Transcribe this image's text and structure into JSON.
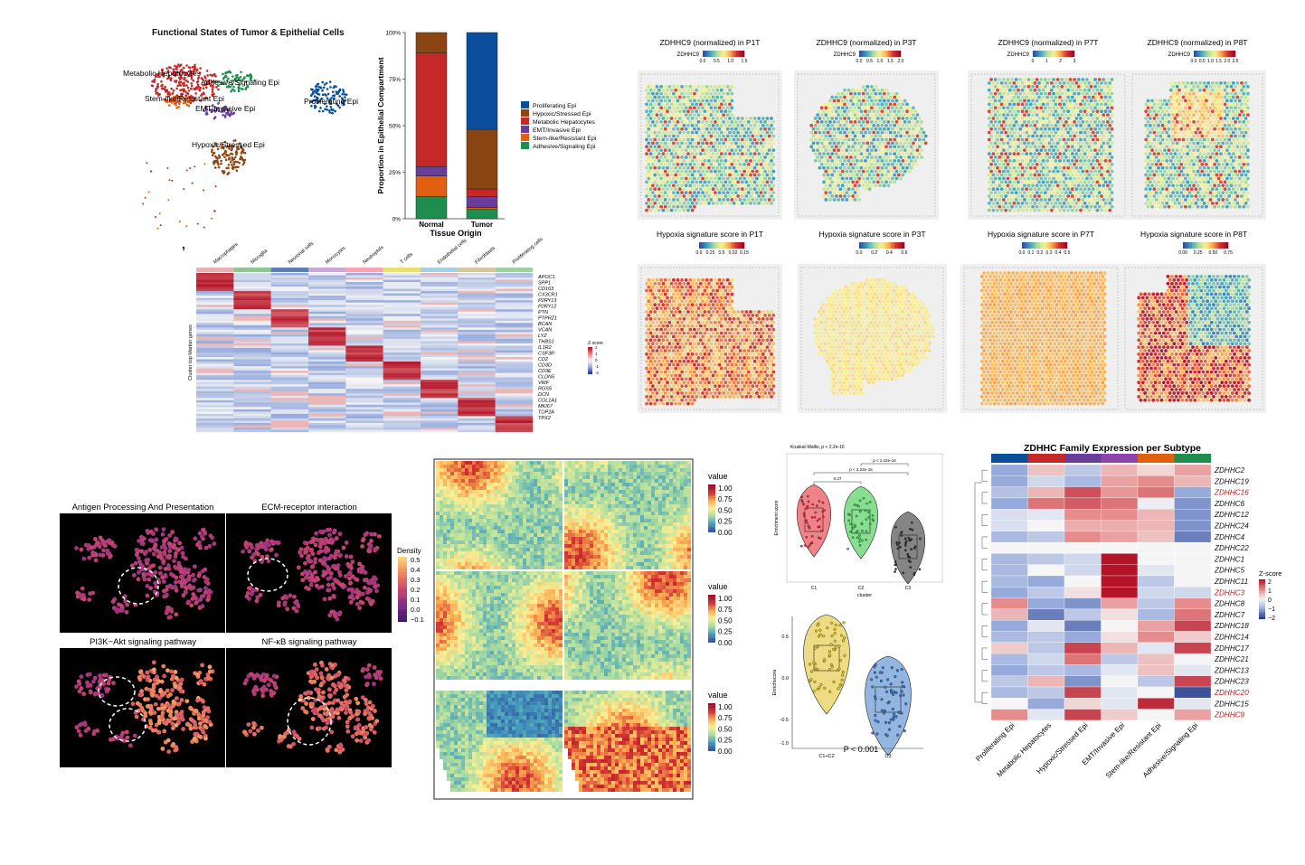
{
  "panel_comma": ",",
  "umap": {
    "title": "Functional States of Tumor & Epithelial Cells",
    "labels": [
      "Metabolic Hepatocytes",
      "Adhesive/Signaling Epi",
      "Stem-like/Resistant Epi",
      "EMT/Invasive Epi",
      "Proliferating Epi",
      "Hypoxic/Stressed Epi"
    ],
    "colors": {
      "metabolic": "#c62828",
      "adhesive": "#1e8e4e",
      "stem": "#e06010",
      "emt": "#6a3d9a",
      "prolif": "#0b4f9c",
      "hypoxic": "#8b4513"
    }
  },
  "chart_data": [
    {
      "type": "bar",
      "stacked": true,
      "categories": [
        "Normal",
        "Tumor"
      ],
      "xlabel": "Tissue Origin",
      "ylabel": "Proportion in Epithelial Compartment",
      "yticks": [
        "0%",
        "25%",
        "50%",
        "75%",
        "100%"
      ],
      "ylim": [
        0,
        1
      ],
      "legend_position": "right",
      "series": [
        {
          "name": "Adhesive/Signaling Epi",
          "color": "#1e8e4e",
          "values": [
            0.12,
            0.05
          ]
        },
        {
          "name": "Stem-like/Resistant Epi",
          "color": "#e06010",
          "values": [
            0.11,
            0.01
          ]
        },
        {
          "name": "EMT/Invasive Epi",
          "color": "#6a3d9a",
          "values": [
            0.05,
            0.06
          ]
        },
        {
          "name": "Metabolic Hepatocytes",
          "color": "#c62828",
          "values": [
            0.61,
            0.04
          ]
        },
        {
          "name": "Hypoxic/Stressed Epi",
          "color": "#8b4513",
          "values": [
            0.11,
            0.32
          ]
        },
        {
          "name": "Proliferating Epi",
          "color": "#0b4f9c",
          "values": [
            0.0,
            0.52
          ]
        }
      ],
      "legend_order": [
        "Proliferating Epi",
        "Hypoxic/Stressed Epi",
        "Metabolic Hepatocytes",
        "EMT/Invasive Epi",
        "Stem-like/Resistant Epi",
        "Adhesive/Signaling Epi"
      ]
    },
    {
      "type": "heatmap",
      "columns": [
        "Macrophages",
        "Microglia",
        "Neuronal cells",
        "Monocytes",
        "Neutrophils",
        "T cells",
        "Endothelial cells",
        "Fibroblasts",
        "Proliferating cells"
      ],
      "column_colors": [
        "#e8b0b0",
        "#90c490",
        "#5a7fb0",
        "#c9a8d8",
        "#f4a4b4",
        "#e8e070",
        "#a6cde0",
        "#d6c6a0",
        "#9fd09f"
      ],
      "ylabel": "Cluster top Marker genes",
      "genes": [
        "APOC1",
        "SPP1",
        "CD163",
        "CX3CR1",
        "P2RY13",
        "P2RY12",
        "PTN",
        "PTPRZ1",
        "BCAN",
        "VCAN",
        "LYZ",
        "THBS1",
        "IL1R2",
        "CSF3R",
        "CD2",
        "CD3D",
        "CD3E",
        "CLDN5",
        "VWF",
        "RGS5",
        "DCN",
        "COL1A1",
        "MKI67",
        "TOP2A",
        "TPX2"
      ],
      "legend_title": "Z-score",
      "legend_ticks": [
        "2",
        "1",
        "0",
        "-1",
        "-2"
      ]
    },
    {
      "type": "heatmap",
      "title": "ZDHHC Family Expression per Subtype",
      "columns": [
        "Proliferating Epi",
        "Metabolic Hepatocytes",
        "Hypoxic/Stressed Epi",
        "EMT/Invasive Epi",
        "Stem-like/Resistant Epi",
        "Adhesive/Signaling Epi"
      ],
      "column_colors": [
        "#0b4f9c",
        "#c62828",
        "#6a3d9a",
        "#8e44ad",
        "#e06010",
        "#1e8e4e"
      ],
      "rows": [
        "ZDHHC2",
        "ZDHHC19",
        "ZDHHC16",
        "ZDHHC6",
        "ZDHHC12",
        "ZDHHC24",
        "ZDHHC4",
        "ZDHHC22",
        "ZDHHC1",
        "ZDHHC5",
        "ZDHHC11",
        "ZDHHC3",
        "ZDHHC8",
        "ZDHHC7",
        "ZDHHC18",
        "ZDHHC14",
        "ZDHHC17",
        "ZDHHC21",
        "ZDHHC13",
        "ZDHHC23",
        "ZDHHC20",
        "ZDHHC15",
        "ZDHHC9"
      ],
      "highlighted_rows": [
        "ZDHHC16",
        "ZDHHC3",
        "ZDHHC20",
        "ZDHHC9"
      ],
      "values": [
        [
          -1.0,
          0.5,
          -0.6,
          0.6,
          0.3,
          0.8
        ],
        [
          -1.0,
          -0.4,
          -0.8,
          0.8,
          1.0,
          0.6
        ],
        [
          -0.7,
          0.6,
          1.5,
          0.9,
          1.2,
          -1.0
        ],
        [
          -1.0,
          1.2,
          1.4,
          1.2,
          -0.1,
          -1.2
        ],
        [
          -0.3,
          -0.2,
          1.0,
          1.0,
          0.6,
          -1.2
        ],
        [
          -0.3,
          0.0,
          0.7,
          0.7,
          0.6,
          -1.2
        ],
        [
          -0.8,
          -0.6,
          1.0,
          0.8,
          0.5,
          -1.4
        ],
        [
          0.0,
          0.0,
          0.0,
          0.0,
          0.0,
          0.0
        ],
        [
          -0.8,
          -0.6,
          -0.4,
          2.0,
          0.0,
          0.0
        ],
        [
          -0.8,
          0.0,
          -0.4,
          2.0,
          -0.2,
          0.0
        ],
        [
          -0.8,
          -1.0,
          0.0,
          2.0,
          -0.6,
          0.0
        ],
        [
          -1.0,
          -0.6,
          0.2,
          2.0,
          -0.4,
          -0.4
        ],
        [
          1.0,
          -1.0,
          -1.2,
          0.8,
          -0.6,
          1.0
        ],
        [
          0.6,
          -1.4,
          -0.6,
          0.2,
          -0.8,
          1.2
        ],
        [
          -1.0,
          -0.2,
          -1.4,
          0.0,
          0.8,
          1.6
        ],
        [
          -0.8,
          -0.6,
          -1.0,
          0.2,
          1.0,
          0.4
        ],
        [
          0.4,
          -0.6,
          1.6,
          0.6,
          -0.2,
          1.6
        ],
        [
          -0.8,
          -0.4,
          1.2,
          -0.6,
          0.5,
          0.0
        ],
        [
          -1.0,
          -0.6,
          -0.8,
          -0.2,
          0.5,
          -0.2
        ],
        [
          -0.6,
          0.6,
          -1.2,
          0.0,
          -0.6,
          1.6
        ],
        [
          -0.8,
          -0.6,
          1.6,
          -0.2,
          0.0,
          -1.8
        ],
        [
          0.0,
          -1.0,
          0.3,
          -0.2,
          1.8,
          -0.2
        ],
        [
          1.0,
          -0.2,
          1.6,
          0.4,
          0.0,
          0.8
        ]
      ],
      "legend_title": "Z-score",
      "legend_ticks": [
        "2",
        "1",
        "0",
        "−1",
        "−2"
      ]
    },
    {
      "type": "violin",
      "subtitle": "Kruskal-Wallis, p < 2.2e-16",
      "categories": [
        "C1",
        "C2",
        "C3"
      ],
      "colors": [
        "#e6303c",
        "#3cc84a",
        "#333333"
      ],
      "xlabel": "cluster",
      "ylabel": "Enrichment score",
      "comparisons": [
        "0.37",
        "p < 2.22e-16",
        "p < 2.22e-16"
      ]
    },
    {
      "type": "violin",
      "categories": [
        "C1+C2",
        "C3"
      ],
      "colors": [
        "#e0c020",
        "#3a78c4"
      ],
      "ylabel": "Enrichscore",
      "yticks": [
        "0.5",
        "0.0",
        "-0.5",
        "-1.0"
      ],
      "annotation": "P < 0.001"
    }
  ],
  "spatial": {
    "zdhhc_titles": [
      "ZDHHC9 (normalized) in P1T",
      "ZDHHC9 (normalized) in P3T",
      "ZDHHC9 (normalized) in P7T",
      "ZDHHC9 (normalized) in P8T"
    ],
    "zdhhc_legend_label": "ZDHHC9",
    "zdhhc_ticks": [
      [
        "0.0",
        "0.5",
        "1.0",
        "1.5"
      ],
      [
        "0.0",
        "0.5",
        "1.0",
        "1.5",
        "2.0"
      ],
      [
        "0",
        "1",
        "2",
        "3"
      ],
      [
        "0.0",
        "0.5",
        "1.0",
        "1.5",
        "2.0",
        "2.5"
      ]
    ],
    "hypoxia_titles": [
      "Hypoxia signature score in P1T",
      "Hypoxia signature score in P3T",
      "Hypoxia signature score in P7T",
      "Hypoxia signature score in P8T"
    ],
    "hypoxia_ticks": [
      [
        "0.0",
        "0.25",
        "0.5",
        "0.02",
        "0.15"
      ],
      [
        "0.0",
        "0.2",
        "0.4",
        "0.6"
      ],
      [
        "0.0",
        "0.1",
        "0.2",
        "0.3",
        "0.4",
        "0.5"
      ],
      [
        "0.00",
        "0.25",
        "0.50",
        "0.75"
      ]
    ]
  },
  "density": {
    "titles": [
      "Antigen Processing And Presentation",
      "ECM-receptor interaction",
      "PI3K−Akt signaling pathway",
      "NF-κB signaling pathway"
    ],
    "legend_title": "Density",
    "legend_ticks": [
      "0.5",
      "0.4",
      "0.3",
      "0.2",
      "0.1",
      "0.0",
      "−0.1"
    ]
  },
  "value_maps": {
    "legend_title": "value",
    "legend_ticks": [
      "1.00",
      "0.75",
      "0.50",
      "0.25",
      "0.00"
    ]
  }
}
